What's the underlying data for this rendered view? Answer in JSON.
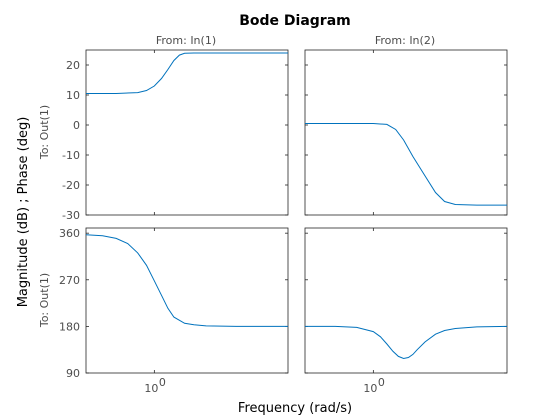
{
  "chart_data": {
    "type": "line",
    "title": "Bode Diagram",
    "xlabel": "Frequency  (rad/s)",
    "ylabel": "Magnitude (dB) ; Phase (deg)",
    "columns": [
      "From: In(1)",
      "From: In(2)"
    ],
    "rows": [
      "To: Out(1)",
      "To: Out(1)"
    ],
    "xscale": "log",
    "xlim": [
      0.4,
      6
    ],
    "xtick_value": 1,
    "xtick_label_base": "10",
    "xtick_label_exp": "0",
    "magnitude": {
      "ylim": [
        -30,
        25
      ],
      "yticks": [
        20,
        10,
        0,
        -10,
        -20,
        -30
      ],
      "series": [
        {
          "x": [
            0.4,
            0.6,
            0.8,
            0.9,
            1.0,
            1.1,
            1.2,
            1.3,
            1.4,
            1.5,
            1.7,
            2.0,
            3.0,
            6.0
          ],
          "y": [
            10.5,
            10.5,
            10.8,
            11.5,
            13.0,
            15.5,
            18.5,
            21.5,
            23.3,
            23.9,
            24.0,
            24.0,
            24.0,
            24.0
          ]
        },
        {
          "x": [
            0.4,
            0.6,
            0.8,
            1.0,
            1.2,
            1.35,
            1.5,
            1.7,
            2.0,
            2.3,
            2.6,
            3.0,
            4.0,
            6.0
          ],
          "y": [
            0.5,
            0.5,
            0.5,
            0.5,
            0.2,
            -1.5,
            -5.0,
            -10.5,
            -17.0,
            -22.5,
            -25.5,
            -26.5,
            -26.7,
            -26.7
          ]
        }
      ]
    },
    "phase": {
      "ylim": [
        90,
        370
      ],
      "yticks": [
        360,
        270,
        180,
        90
      ],
      "series": [
        {
          "x": [
            0.4,
            0.5,
            0.6,
            0.7,
            0.8,
            0.9,
            1.0,
            1.1,
            1.2,
            1.3,
            1.5,
            1.7,
            2.0,
            3.0,
            6.0
          ],
          "y": [
            357,
            355,
            350,
            340,
            322,
            298,
            268,
            240,
            215,
            198,
            186,
            183,
            181,
            180,
            180
          ]
        },
        {
          "x": [
            0.4,
            0.6,
            0.8,
            1.0,
            1.1,
            1.2,
            1.3,
            1.4,
            1.5,
            1.6,
            1.7,
            1.8,
            2.0,
            2.3,
            2.6,
            3.0,
            4.0,
            6.0
          ],
          "y": [
            180,
            180,
            178,
            170,
            160,
            146,
            132,
            122,
            118,
            120,
            126,
            135,
            150,
            165,
            172,
            176,
            179,
            180
          ]
        }
      ]
    }
  }
}
